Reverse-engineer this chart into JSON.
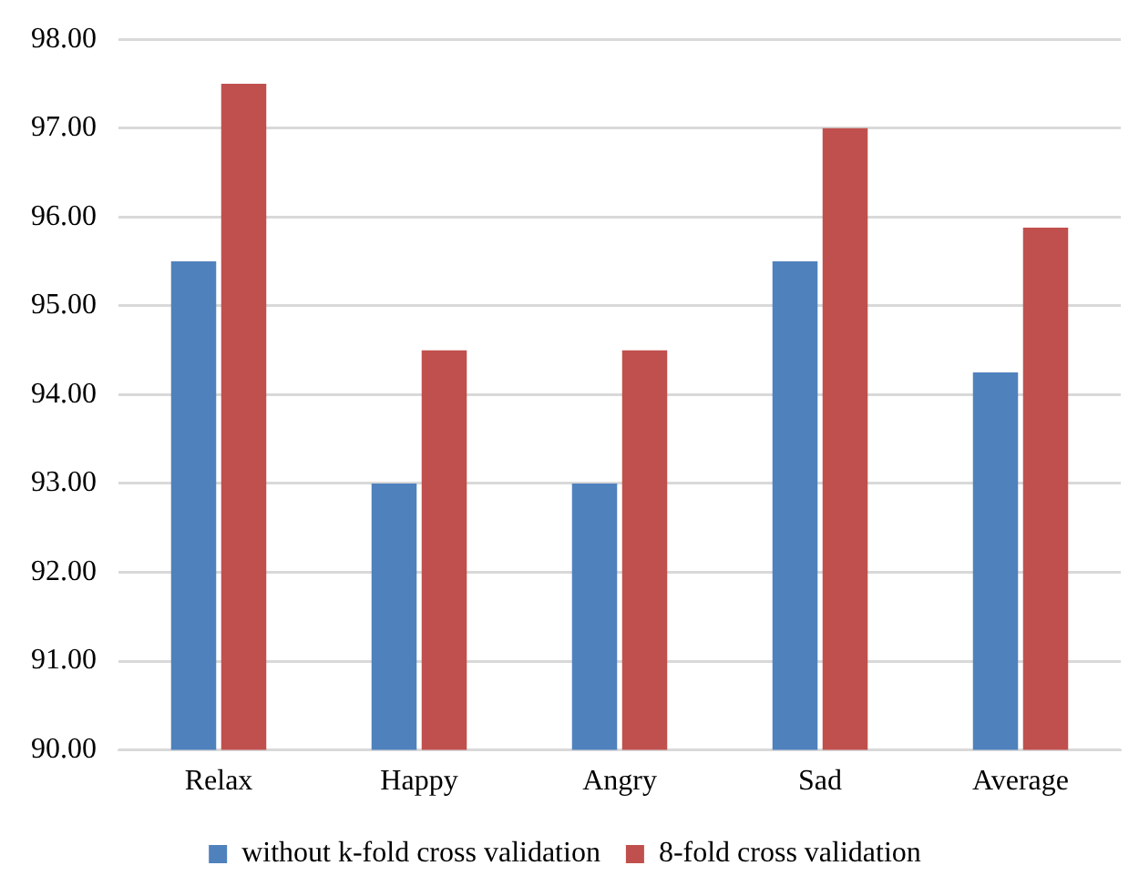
{
  "chart_data": {
    "type": "bar",
    "categories": [
      "Relax",
      "Happy",
      "Angry",
      "Sad",
      "Average"
    ],
    "series": [
      {
        "name": "without k-fold cross validation",
        "color": "#4f81bd",
        "values": [
          95.5,
          93,
          93,
          95.5,
          94.25
        ]
      },
      {
        "name": "8-fold cross validation",
        "color": "#c0504d",
        "values": [
          97.5,
          94.5,
          94.5,
          97,
          95.88
        ]
      }
    ],
    "ylim": [
      90,
      98
    ],
    "yticks": [
      {
        "value": 90,
        "label": "90.00"
      },
      {
        "value": 91,
        "label": "91.00"
      },
      {
        "value": 92,
        "label": "92.00"
      },
      {
        "value": 93,
        "label": "93.00"
      },
      {
        "value": 94,
        "label": "94.00"
      },
      {
        "value": 95,
        "label": "95.00"
      },
      {
        "value": 96,
        "label": "96.00"
      },
      {
        "value": 97,
        "label": "97.00"
      },
      {
        "value": 98,
        "label": "98.00"
      }
    ],
    "grid": "y",
    "legend": "bottom"
  }
}
